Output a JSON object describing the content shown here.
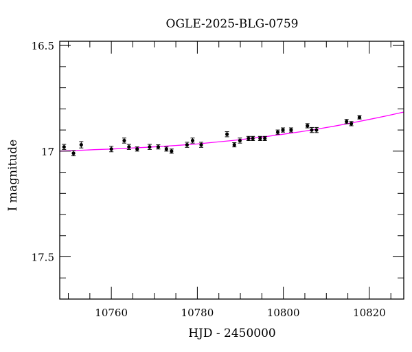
{
  "chart_data": {
    "type": "scatter",
    "title": "OGLE-2025-BLG-0759",
    "xlabel": "HJD - 2450000",
    "ylabel": "I magnitude",
    "xlim": [
      10748,
      10828
    ],
    "ylim": [
      17.7,
      16.48
    ],
    "y_inverted": true,
    "grid": false,
    "x_ticks": [
      10760,
      10780,
      10800,
      10820
    ],
    "x_tick_labels": [
      "10760",
      "10780",
      "10800",
      "10820"
    ],
    "y_ticks": [
      16.5,
      17,
      17.5
    ],
    "y_tick_labels": [
      "16.5",
      "17",
      "17.5"
    ],
    "colors": {
      "points": "#000000",
      "model": "#ff00ff",
      "axes": "#000000"
    },
    "series": [
      {
        "kind": "points_with_errorbars",
        "points": [
          {
            "x": 10749.0,
            "y": 16.98,
            "err": 0.012
          },
          {
            "x": 10751.2,
            "y": 17.01,
            "err": 0.012
          },
          {
            "x": 10753.0,
            "y": 16.97,
            "err": 0.015
          },
          {
            "x": 10760.0,
            "y": 16.99,
            "err": 0.013
          },
          {
            "x": 10763.0,
            "y": 16.95,
            "err": 0.012
          },
          {
            "x": 10764.1,
            "y": 16.98,
            "err": 0.012
          },
          {
            "x": 10766.0,
            "y": 16.99,
            "err": 0.01
          },
          {
            "x": 10768.9,
            "y": 16.98,
            "err": 0.012
          },
          {
            "x": 10770.9,
            "y": 16.98,
            "err": 0.01
          },
          {
            "x": 10772.8,
            "y": 16.99,
            "err": 0.01
          },
          {
            "x": 10774.0,
            "y": 17.0,
            "err": 0.01
          },
          {
            "x": 10777.6,
            "y": 16.97,
            "err": 0.012
          },
          {
            "x": 10778.9,
            "y": 16.95,
            "err": 0.012
          },
          {
            "x": 10780.9,
            "y": 16.97,
            "err": 0.012
          },
          {
            "x": 10786.9,
            "y": 16.92,
            "err": 0.012
          },
          {
            "x": 10788.6,
            "y": 16.97,
            "err": 0.01
          },
          {
            "x": 10789.9,
            "y": 16.95,
            "err": 0.012
          },
          {
            "x": 10791.9,
            "y": 16.94,
            "err": 0.01
          },
          {
            "x": 10792.9,
            "y": 16.94,
            "err": 0.01
          },
          {
            "x": 10794.6,
            "y": 16.94,
            "err": 0.01
          },
          {
            "x": 10795.7,
            "y": 16.94,
            "err": 0.01
          },
          {
            "x": 10798.7,
            "y": 16.91,
            "err": 0.01
          },
          {
            "x": 10799.9,
            "y": 16.9,
            "err": 0.01
          },
          {
            "x": 10801.8,
            "y": 16.9,
            "err": 0.01
          },
          {
            "x": 10805.6,
            "y": 16.88,
            "err": 0.01
          },
          {
            "x": 10806.6,
            "y": 16.9,
            "err": 0.012
          },
          {
            "x": 10807.7,
            "y": 16.9,
            "err": 0.012
          },
          {
            "x": 10814.7,
            "y": 16.86,
            "err": 0.01
          },
          {
            "x": 10815.8,
            "y": 16.87,
            "err": 0.01
          },
          {
            "x": 10817.7,
            "y": 16.84,
            "err": 0.008
          }
        ]
      },
      {
        "kind": "model_curve",
        "x": [
          10748,
          10752,
          10756,
          10760,
          10764,
          10768,
          10772,
          10776,
          10780,
          10784,
          10788,
          10792,
          10796,
          10800,
          10804,
          10808,
          10812,
          10816,
          10820,
          10824,
          10828
        ],
        "y": [
          17.0,
          16.997,
          16.993,
          16.99,
          16.986,
          16.982,
          16.977,
          16.972,
          16.966,
          16.958,
          16.95,
          16.941,
          16.931,
          16.92,
          16.908,
          16.895,
          16.881,
          16.866,
          16.85,
          16.833,
          16.815
        ]
      }
    ]
  }
}
